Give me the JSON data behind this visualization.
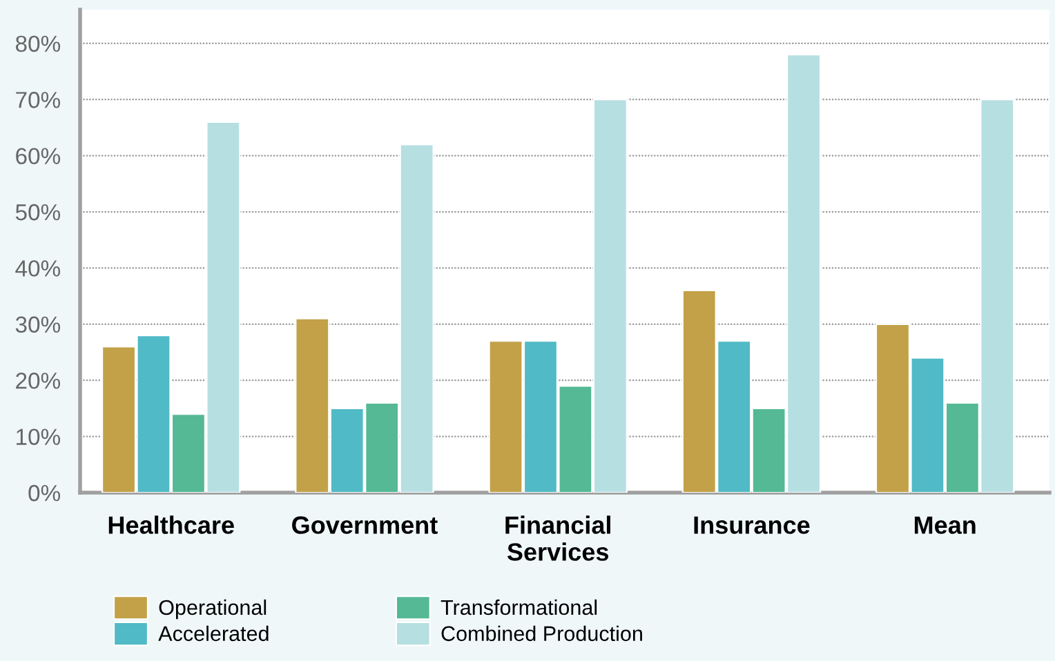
{
  "chart_data": {
    "type": "bar",
    "categories": [
      "Healthcare",
      "Government",
      "Financial\nServices",
      "Insurance",
      "Mean"
    ],
    "series": [
      {
        "name": "Operational",
        "color": "#c2a148",
        "values": [
          26,
          31,
          27,
          36,
          30
        ]
      },
      {
        "name": "Accelerated",
        "color": "#50bac6",
        "values": [
          28,
          15,
          27,
          27,
          24
        ]
      },
      {
        "name": "Transformational",
        "color": "#54b994",
        "values": [
          14,
          16,
          19,
          15,
          16
        ]
      },
      {
        "name": "Combined Production",
        "color": "#b6dfe2",
        "values": [
          66,
          62,
          70,
          78,
          70
        ]
      }
    ],
    "ylim": [
      0,
      86
    ],
    "yticks": [
      {
        "value": 0,
        "label": "0%"
      },
      {
        "value": 10,
        "label": "10%"
      },
      {
        "value": 20,
        "label": "20%"
      },
      {
        "value": 30,
        "label": "30%"
      },
      {
        "value": 40,
        "label": "40%"
      },
      {
        "value": 50,
        "label": "50%"
      },
      {
        "value": 60,
        "label": "60%"
      },
      {
        "value": 70,
        "label": "70%"
      },
      {
        "value": 80,
        "label": "80%"
      }
    ],
    "grid": "y",
    "legend": "bottom"
  }
}
